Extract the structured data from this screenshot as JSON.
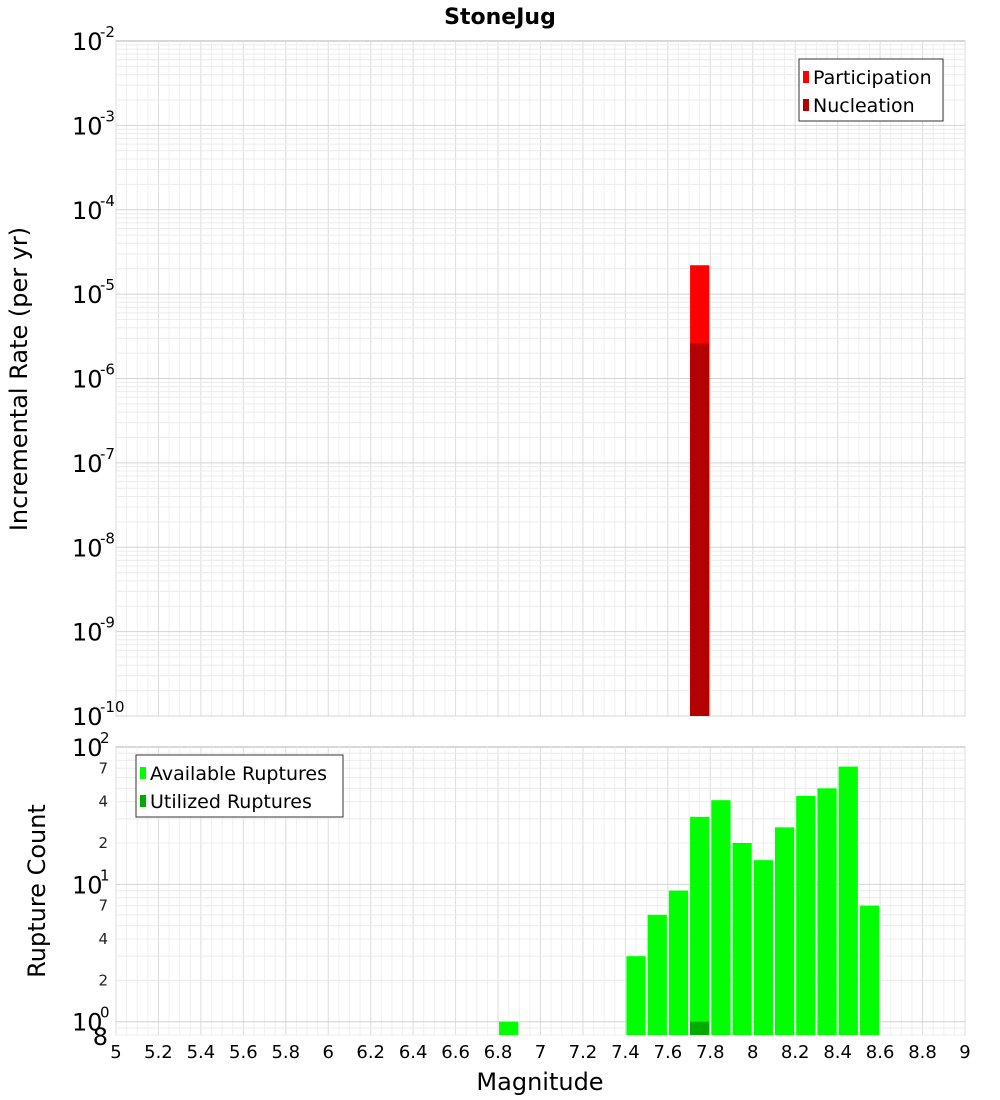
{
  "chart_data": [
    {
      "type": "bar",
      "title": "StoneJug",
      "ylabel": "Incremental Rate (per yr)",
      "yscale": "log",
      "ylim": [
        1e-10,
        0.01
      ],
      "xlim": [
        5,
        9
      ],
      "y_ticks": [
        {
          "base": "10",
          "exp": "-10"
        },
        {
          "base": "10",
          "exp": "-9"
        },
        {
          "base": "10",
          "exp": "-8"
        },
        {
          "base": "10",
          "exp": "-7"
        },
        {
          "base": "10",
          "exp": "-6"
        },
        {
          "base": "10",
          "exp": "-5"
        },
        {
          "base": "10",
          "exp": "-4"
        },
        {
          "base": "10",
          "exp": "-3"
        },
        {
          "base": "10",
          "exp": "-2"
        }
      ],
      "grid": true,
      "legend_position": "top-right",
      "bin_width": 0.1,
      "series": [
        {
          "name": "Participation",
          "color": "#ff0000",
          "x": [
            7.75
          ],
          "values": [
            2.2e-05
          ]
        },
        {
          "name": "Nucleation",
          "color": "#b30000",
          "x": [
            7.75
          ],
          "values": [
            2.6e-06
          ]
        }
      ]
    },
    {
      "type": "bar",
      "xlabel": "Magnitude",
      "ylabel": "Rupture Count",
      "yscale": "log",
      "ylim": [
        0.8,
        100
      ],
      "xlim": [
        5,
        9
      ],
      "x_ticks": [
        "5",
        "5.2",
        "5.4",
        "5.6",
        "5.8",
        "6",
        "6.2",
        "6.4",
        "6.6",
        "6.8",
        "7",
        "7.2",
        "7.4",
        "7.6",
        "7.8",
        "8",
        "8.2",
        "8.4",
        "8.6",
        "8.8",
        "9"
      ],
      "y_ticks": [
        {
          "base": "10",
          "exp": "0"
        },
        {
          "base": "10",
          "exp": "1"
        },
        {
          "base": "10",
          "exp": "2"
        }
      ],
      "y_minor_ticks": [
        {
          "label": "8",
          "value": 0.8
        },
        {
          "label": "2",
          "value": 2
        },
        {
          "label": "4",
          "value": 4
        },
        {
          "label": "7",
          "value": 7
        },
        {
          "label": "2",
          "value": 20
        },
        {
          "label": "4",
          "value": 40
        },
        {
          "label": "7",
          "value": 70
        }
      ],
      "grid": true,
      "legend_position": "top-left",
      "bin_width": 0.1,
      "series": [
        {
          "name": "Available Ruptures",
          "color": "#00ff00",
          "x": [
            6.85,
            7.45,
            7.55,
            7.65,
            7.75,
            7.85,
            7.95,
            8.05,
            8.15,
            8.25,
            8.35,
            8.45,
            8.55
          ],
          "values": [
            1,
            3,
            6,
            9,
            31,
            41,
            20,
            15,
            26,
            44,
            50,
            72,
            7
          ]
        },
        {
          "name": "Utilized Ruptures",
          "color": "#00aa00",
          "x": [
            7.75
          ],
          "values": [
            1
          ]
        }
      ]
    }
  ]
}
